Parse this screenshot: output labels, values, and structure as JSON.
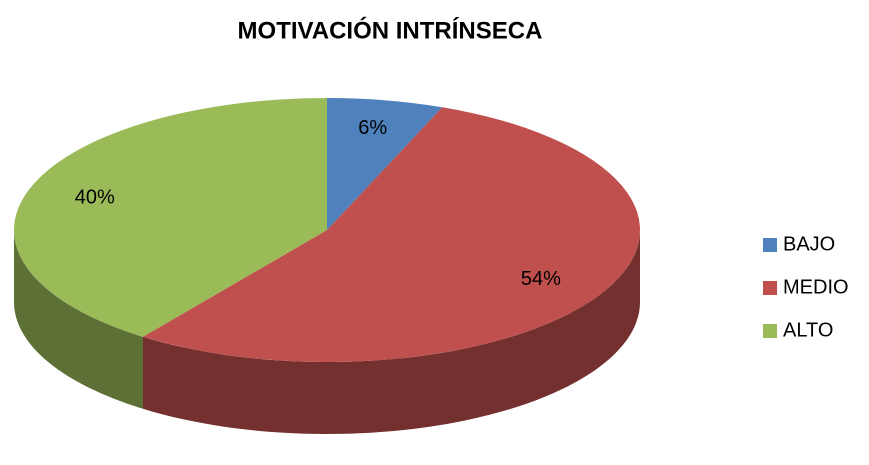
{
  "chart_data": {
    "type": "pie",
    "title": "MOTIVACIÓN INTRÍNSECA",
    "categories": [
      "BAJO",
      "MEDIO",
      "ALTO"
    ],
    "values": [
      6,
      54,
      40
    ],
    "value_labels": [
      "6%",
      "54%",
      "40%"
    ],
    "colors": [
      "#4f81bd",
      "#c0504d",
      "#9bbb59"
    ],
    "legend": "right"
  }
}
